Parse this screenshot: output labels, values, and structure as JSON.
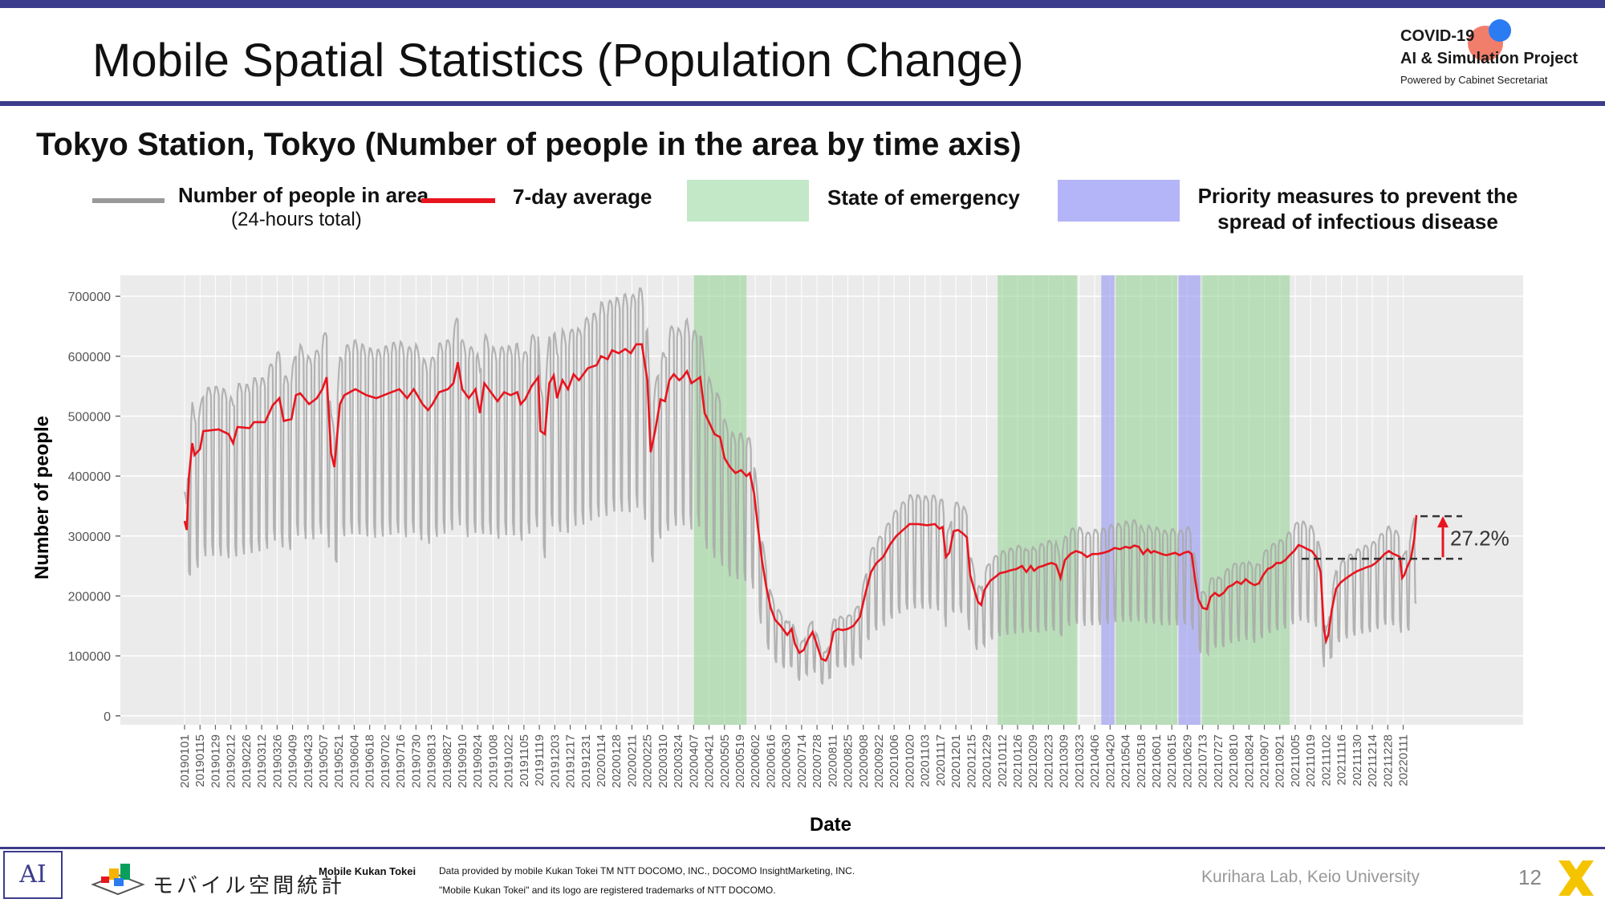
{
  "slide": {
    "title": "Mobile Spatial Statistics (Population Change)",
    "page_number": "12"
  },
  "logo": {
    "line1": "COVID-19",
    "line2": "AI & Simulation Project",
    "line3": "Powered by Cabinet Secretariat"
  },
  "subtitle": "Tokyo Station, Tokyo (Number of people in the area by time axis)",
  "legend": {
    "daily_label": "Number of people in area",
    "daily_sub": "(24-hours total)",
    "avg_label": "7-day average",
    "emergency_label": "State of emergency",
    "priority_label_1": "Priority measures to prevent the",
    "priority_label_2": "spread of infectious disease"
  },
  "footer": {
    "left_logo": "AI",
    "kukan_jp": "モバイル空間統計",
    "kukan_en": "Mobile Kukan Tokei",
    "credit_line1": "Data provided by mobile Kukan Tokei TM NTT DOCOMO, INC., DOCOMO InsightMarketing, INC.",
    "credit_line2": "\"Mobile Kukan Tokei\" and its logo are registered trademarks of NTT DOCOMO.",
    "lab": "Kurihara Lab, Keio University"
  },
  "colors": {
    "daily_line": "#a8a8a8",
    "average_line": "#e8141e",
    "emergency": "#8fd18f",
    "priority": "#9c9cf5",
    "plot_background": "#ebebeb",
    "accent_bar": "#3c3c8c"
  },
  "chart_data": {
    "type": "line",
    "xlabel": "Date",
    "ylabel": "Number of people",
    "ylim": [
      -15000,
      735000
    ],
    "yticks": [
      0,
      100000,
      200000,
      300000,
      400000,
      500000,
      600000,
      700000
    ],
    "ytick_labels": [
      "0",
      "100000",
      "200000",
      "300000",
      "400000",
      "500000",
      "600000",
      "700000"
    ],
    "grid": true,
    "x_start": "2019-01-01",
    "x_end": "2022-01-23",
    "xtick_labels": [
      "20190101",
      "20190115",
      "20190129",
      "20190212",
      "20190226",
      "20190312",
      "20190326",
      "20190409",
      "20190423",
      "20190507",
      "20190521",
      "20190604",
      "20190618",
      "20190702",
      "20190716",
      "20190730",
      "20190813",
      "20190827",
      "20190910",
      "20190924",
      "20191008",
      "20191022",
      "20191105",
      "20191119",
      "20191203",
      "20191217",
      "20191231",
      "20200114",
      "20200128",
      "20200211",
      "20200225",
      "20200310",
      "20200324",
      "20200407",
      "20200421",
      "20200505",
      "20200519",
      "20200602",
      "20200616",
      "20200630",
      "20200714",
      "20200728",
      "20200811",
      "20200825",
      "20200908",
      "20200922",
      "20201006",
      "20201020",
      "20201103",
      "20201117",
      "20201201",
      "20201215",
      "20201229",
      "20210112",
      "20210126",
      "20210209",
      "20210223",
      "20210309",
      "20210323",
      "20210406",
      "20210420",
      "20210504",
      "20210518",
      "20210601",
      "20210615",
      "20210629",
      "20210713",
      "20210727",
      "20210810",
      "20210824",
      "20210907",
      "20210921",
      "20211005",
      "20211019",
      "20211102",
      "20211116",
      "20211130",
      "20211214",
      "20211228",
      "20220111"
    ],
    "average_series": {
      "name": "7-day average",
      "points": [
        [
          "2019-01-01",
          325000
        ],
        [
          "2019-01-03",
          310000
        ],
        [
          "2019-01-05",
          400000
        ],
        [
          "2019-01-08",
          455000
        ],
        [
          "2019-01-10",
          435000
        ],
        [
          "2019-01-15",
          445000
        ],
        [
          "2019-01-18",
          475000
        ],
        [
          "2019-02-01",
          478000
        ],
        [
          "2019-02-10",
          470000
        ],
        [
          "2019-02-14",
          455000
        ],
        [
          "2019-02-18",
          482000
        ],
        [
          "2019-03-01",
          480000
        ],
        [
          "2019-03-05",
          490000
        ],
        [
          "2019-03-15",
          490000
        ],
        [
          "2019-03-22",
          518000
        ],
        [
          "2019-03-28",
          530000
        ],
        [
          "2019-04-01",
          492000
        ],
        [
          "2019-04-08",
          495000
        ],
        [
          "2019-04-12",
          535000
        ],
        [
          "2019-04-16",
          538000
        ],
        [
          "2019-04-24",
          520000
        ],
        [
          "2019-05-01",
          530000
        ],
        [
          "2019-05-06",
          545000
        ],
        [
          "2019-05-10",
          565000
        ],
        [
          "2019-05-14",
          438000
        ],
        [
          "2019-05-17",
          415000
        ],
        [
          "2019-05-22",
          520000
        ],
        [
          "2019-05-26",
          535000
        ],
        [
          "2019-06-05",
          545000
        ],
        [
          "2019-06-15",
          535000
        ],
        [
          "2019-06-24",
          530000
        ],
        [
          "2019-07-05",
          538000
        ],
        [
          "2019-07-15",
          545000
        ],
        [
          "2019-07-22",
          530000
        ],
        [
          "2019-07-28",
          545000
        ],
        [
          "2019-08-05",
          520000
        ],
        [
          "2019-08-10",
          510000
        ],
        [
          "2019-08-14",
          520000
        ],
        [
          "2019-08-20",
          540000
        ],
        [
          "2019-08-28",
          545000
        ],
        [
          "2019-09-02",
          555000
        ],
        [
          "2019-09-06",
          590000
        ],
        [
          "2019-09-10",
          545000
        ],
        [
          "2019-09-16",
          530000
        ],
        [
          "2019-09-22",
          545000
        ],
        [
          "2019-09-26",
          505000
        ],
        [
          "2019-09-30",
          555000
        ],
        [
          "2019-10-06",
          540000
        ],
        [
          "2019-10-12",
          525000
        ],
        [
          "2019-10-18",
          540000
        ],
        [
          "2019-10-24",
          535000
        ],
        [
          "2019-10-30",
          540000
        ],
        [
          "2019-11-02",
          520000
        ],
        [
          "2019-11-06",
          528000
        ],
        [
          "2019-11-12",
          550000
        ],
        [
          "2019-11-18",
          565000
        ],
        [
          "2019-11-20",
          475000
        ],
        [
          "2019-11-24",
          470000
        ],
        [
          "2019-11-28",
          555000
        ],
        [
          "2019-12-02",
          568000
        ],
        [
          "2019-12-05",
          530000
        ],
        [
          "2019-12-10",
          560000
        ],
        [
          "2019-12-15",
          545000
        ],
        [
          "2019-12-20",
          570000
        ],
        [
          "2019-12-25",
          560000
        ],
        [
          "2020-01-02",
          580000
        ],
        [
          "2020-01-10",
          585000
        ],
        [
          "2020-01-14",
          600000
        ],
        [
          "2020-01-20",
          595000
        ],
        [
          "2020-01-24",
          610000
        ],
        [
          "2020-01-30",
          605000
        ],
        [
          "2020-02-05",
          612000
        ],
        [
          "2020-02-10",
          605000
        ],
        [
          "2020-02-15",
          620000
        ],
        [
          "2020-02-20",
          620000
        ],
        [
          "2020-02-25",
          560000
        ],
        [
          "2020-02-28",
          440000
        ],
        [
          "2020-03-03",
          475000
        ],
        [
          "2020-03-08",
          528000
        ],
        [
          "2020-03-12",
          525000
        ],
        [
          "2020-03-16",
          560000
        ],
        [
          "2020-03-20",
          570000
        ],
        [
          "2020-03-25",
          560000
        ],
        [
          "2020-03-28",
          565000
        ],
        [
          "2020-04-01",
          575000
        ],
        [
          "2020-04-05",
          555000
        ],
        [
          "2020-04-09",
          560000
        ],
        [
          "2020-04-13",
          565000
        ],
        [
          "2020-04-17",
          505000
        ],
        [
          "2020-04-21",
          490000
        ],
        [
          "2020-04-26",
          470000
        ],
        [
          "2020-05-01",
          465000
        ],
        [
          "2020-05-05",
          430000
        ],
        [
          "2020-05-10",
          415000
        ],
        [
          "2020-05-15",
          405000
        ],
        [
          "2020-05-20",
          410000
        ],
        [
          "2020-05-25",
          400000
        ],
        [
          "2020-05-28",
          405000
        ],
        [
          "2020-06-01",
          370000
        ],
        [
          "2020-06-04",
          320000
        ],
        [
          "2020-06-08",
          260000
        ],
        [
          "2020-06-12",
          215000
        ],
        [
          "2020-06-16",
          180000
        ],
        [
          "2020-06-20",
          160000
        ],
        [
          "2020-06-25",
          150000
        ],
        [
          "2020-07-01",
          135000
        ],
        [
          "2020-07-05",
          145000
        ],
        [
          "2020-07-08",
          120000
        ],
        [
          "2020-07-12",
          105000
        ],
        [
          "2020-07-16",
          110000
        ],
        [
          "2020-07-20",
          128000
        ],
        [
          "2020-07-24",
          140000
        ],
        [
          "2020-07-28",
          118000
        ],
        [
          "2020-08-01",
          95000
        ],
        [
          "2020-08-05",
          92000
        ],
        [
          "2020-08-08",
          105000
        ],
        [
          "2020-08-12",
          140000
        ],
        [
          "2020-08-16",
          145000
        ],
        [
          "2020-08-20",
          143000
        ],
        [
          "2020-08-25",
          145000
        ],
        [
          "2020-08-30",
          150000
        ],
        [
          "2020-09-05",
          165000
        ],
        [
          "2020-09-10",
          205000
        ],
        [
          "2020-09-15",
          240000
        ],
        [
          "2020-09-20",
          255000
        ],
        [
          "2020-09-26",
          265000
        ],
        [
          "2020-10-02",
          285000
        ],
        [
          "2020-10-08",
          300000
        ],
        [
          "2020-10-14",
          310000
        ],
        [
          "2020-10-20",
          320000
        ],
        [
          "2020-10-28",
          320000
        ],
        [
          "2020-11-05",
          318000
        ],
        [
          "2020-11-12",
          320000
        ],
        [
          "2020-11-16",
          312000
        ],
        [
          "2020-11-19",
          315000
        ],
        [
          "2020-11-22",
          265000
        ],
        [
          "2020-11-25",
          272000
        ],
        [
          "2020-11-29",
          308000
        ],
        [
          "2020-12-03",
          310000
        ],
        [
          "2020-12-07",
          305000
        ],
        [
          "2020-12-11",
          298000
        ],
        [
          "2020-12-14",
          235000
        ],
        [
          "2020-12-17",
          215000
        ],
        [
          "2020-12-21",
          190000
        ],
        [
          "2020-12-24",
          185000
        ],
        [
          "2020-12-27",
          210000
        ],
        [
          "2021-01-01",
          225000
        ],
        [
          "2021-01-06",
          232000
        ],
        [
          "2021-01-10",
          238000
        ],
        [
          "2021-01-15",
          240000
        ],
        [
          "2021-01-20",
          243000
        ],
        [
          "2021-01-25",
          245000
        ],
        [
          "2021-01-30",
          250000
        ],
        [
          "2021-02-03",
          240000
        ],
        [
          "2021-02-07",
          250000
        ],
        [
          "2021-02-10",
          242000
        ],
        [
          "2021-02-14",
          248000
        ],
        [
          "2021-02-18",
          250000
        ],
        [
          "2021-02-22",
          253000
        ],
        [
          "2021-02-26",
          255000
        ],
        [
          "2021-03-02",
          252000
        ],
        [
          "2021-03-06",
          230000
        ],
        [
          "2021-03-10",
          260000
        ],
        [
          "2021-03-15",
          270000
        ],
        [
          "2021-03-20",
          275000
        ],
        [
          "2021-03-25",
          272000
        ],
        [
          "2021-03-30",
          265000
        ],
        [
          "2021-04-04",
          270000
        ],
        [
          "2021-04-09",
          270000
        ],
        [
          "2021-04-14",
          272000
        ],
        [
          "2021-04-19",
          275000
        ],
        [
          "2021-04-24",
          280000
        ],
        [
          "2021-04-29",
          278000
        ],
        [
          "2021-05-04",
          282000
        ],
        [
          "2021-05-08",
          280000
        ],
        [
          "2021-05-12",
          284000
        ],
        [
          "2021-05-16",
          282000
        ],
        [
          "2021-05-20",
          270000
        ],
        [
          "2021-05-24",
          278000
        ],
        [
          "2021-05-27",
          272000
        ],
        [
          "2021-05-30",
          275000
        ],
        [
          "2021-06-03",
          272000
        ],
        [
          "2021-06-06",
          270000
        ],
        [
          "2021-06-10",
          268000
        ],
        [
          "2021-06-14",
          270000
        ],
        [
          "2021-06-18",
          272000
        ],
        [
          "2021-06-22",
          268000
        ],
        [
          "2021-06-26",
          272000
        ],
        [
          "2021-06-30",
          274000
        ],
        [
          "2021-07-03",
          270000
        ],
        [
          "2021-07-06",
          230000
        ],
        [
          "2021-07-09",
          195000
        ],
        [
          "2021-07-13",
          180000
        ],
        [
          "2021-07-17",
          178000
        ],
        [
          "2021-07-20",
          198000
        ],
        [
          "2021-07-24",
          205000
        ],
        [
          "2021-07-28",
          200000
        ],
        [
          "2021-08-01",
          205000
        ],
        [
          "2021-08-05",
          215000
        ],
        [
          "2021-08-09",
          218000
        ],
        [
          "2021-08-13",
          224000
        ],
        [
          "2021-08-17",
          220000
        ],
        [
          "2021-08-21",
          228000
        ],
        [
          "2021-08-25",
          222000
        ],
        [
          "2021-08-29",
          218000
        ],
        [
          "2021-09-02",
          221000
        ],
        [
          "2021-09-06",
          235000
        ],
        [
          "2021-09-10",
          245000
        ],
        [
          "2021-09-14",
          248000
        ],
        [
          "2021-09-18",
          255000
        ],
        [
          "2021-09-22",
          255000
        ],
        [
          "2021-09-26",
          260000
        ],
        [
          "2021-09-30",
          268000
        ],
        [
          "2021-10-04",
          275000
        ],
        [
          "2021-10-08",
          285000
        ],
        [
          "2021-10-12",
          282000
        ],
        [
          "2021-10-16",
          278000
        ],
        [
          "2021-10-20",
          275000
        ],
        [
          "2021-10-24",
          265000
        ],
        [
          "2021-10-28",
          240000
        ],
        [
          "2021-10-31",
          145000
        ],
        [
          "2021-11-02",
          125000
        ],
        [
          "2021-11-04",
          135000
        ],
        [
          "2021-11-07",
          175000
        ],
        [
          "2021-11-11",
          212000
        ],
        [
          "2021-11-15",
          222000
        ],
        [
          "2021-11-19",
          228000
        ],
        [
          "2021-11-23",
          233000
        ],
        [
          "2021-11-27",
          238000
        ],
        [
          "2021-12-01",
          242000
        ],
        [
          "2021-12-05",
          245000
        ],
        [
          "2021-12-09",
          248000
        ],
        [
          "2021-12-13",
          250000
        ],
        [
          "2021-12-17",
          255000
        ],
        [
          "2021-12-21",
          262000
        ],
        [
          "2021-12-25",
          270000
        ],
        [
          "2021-12-29",
          275000
        ],
        [
          "2022-01-02",
          270000
        ],
        [
          "2022-01-05",
          268000
        ],
        [
          "2022-01-08",
          265000
        ],
        [
          "2022-01-10",
          230000
        ],
        [
          "2022-01-12",
          235000
        ],
        [
          "2022-01-15",
          250000
        ],
        [
          "2022-01-18",
          262000
        ],
        [
          "2022-01-21",
          295000
        ],
        [
          "2022-01-23",
          335000
        ]
      ]
    },
    "daily_series": {
      "name": "Number of people in area",
      "subtitle": "(24-hours total)",
      "weekday_range_vs_average": [
        1.15,
        0.55
      ],
      "note": ""
    },
    "emergency_periods": [
      [
        "2020-04-07",
        "2020-05-25"
      ],
      [
        "2021-01-08",
        "2021-03-21"
      ],
      [
        "2021-04-25",
        "2021-06-20"
      ],
      [
        "2021-07-12",
        "2021-09-30"
      ]
    ],
    "priority_periods": [
      [
        "2021-04-12",
        "2021-04-24"
      ],
      [
        "2021-06-21",
        "2021-07-11"
      ]
    ],
    "annotation": {
      "text": "27.2%",
      "from_value": 262000,
      "to_value": 333000
    }
  }
}
